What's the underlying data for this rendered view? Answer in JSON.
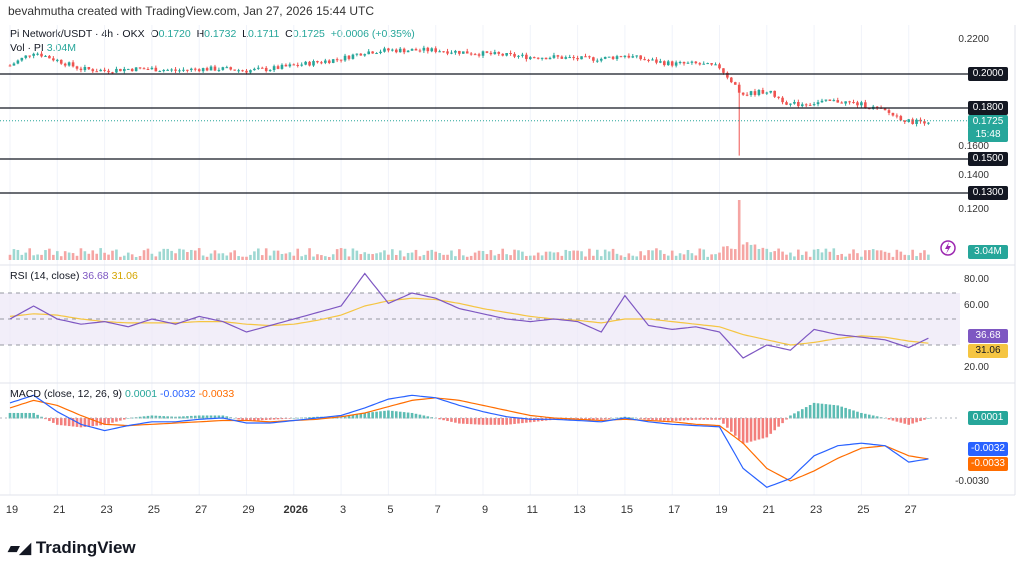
{
  "credit": "bevahmutha created with TradingView.com, Jan 27, 2026 15:44 UTC",
  "legend": {
    "symbol": "Pi Network/USDT · 4h · OKX",
    "o_label": "O",
    "o": "0.1720",
    "h_label": "H",
    "h": "0.1732",
    "l_label": "L",
    "l": "0.1711",
    "c_label": "C",
    "c": "0.1725",
    "change": "+0.0006 (+0.35%)"
  },
  "volume": {
    "label": "Vol · PI",
    "value": "3.04M"
  },
  "brand": "TradingView",
  "colors": {
    "up": "#26a69a",
    "down": "#ef5350",
    "rsi": "#7e57c2",
    "rsi_ma": "#f5c542",
    "macd": "#2962ff",
    "signal": "#ff6d00"
  },
  "chart_data": [
    {
      "type": "candlestick",
      "title": "Pi Network/USDT 4h",
      "x_ticks": [
        "19",
        "21",
        "23",
        "25",
        "27",
        "29",
        "2026",
        "3",
        "5",
        "7",
        "9",
        "11",
        "13",
        "15",
        "17",
        "19",
        "21",
        "23",
        "25",
        "27"
      ],
      "y_ticks": [
        "0.2200",
        "0.2000",
        "0.1800",
        "0.1600",
        "0.1500",
        "0.1400",
        "0.1300",
        "0.1200"
      ],
      "ylim": [
        0.115,
        0.228
      ],
      "horizontal_lines": [
        "0.2000",
        "0.1800",
        "0.1500",
        "0.1300"
      ],
      "last_price": "0.1725",
      "countdown": "15:48",
      "volume_last": "3.04M",
      "daily_close": [
        0.205,
        0.213,
        0.208,
        0.203,
        0.202,
        0.203,
        0.203,
        0.202,
        0.203,
        0.203,
        0.202,
        0.203,
        0.205,
        0.207,
        0.209,
        0.213,
        0.214,
        0.214,
        0.214,
        0.213,
        0.212,
        0.211,
        0.21,
        0.21,
        0.209,
        0.209,
        0.211,
        0.208,
        0.206,
        0.206,
        0.204,
        0.188,
        0.19,
        0.182,
        0.183,
        0.184,
        0.182,
        0.178,
        0.172,
        0.1725
      ]
    },
    {
      "type": "line",
      "title": "RSI (14, close)",
      "rsi_value": "36.68",
      "ma_value": "31.06",
      "y_ticks": [
        "80.00",
        "60.00",
        "20.00"
      ],
      "ylim": [
        10,
        90
      ],
      "bands": [
        70,
        50,
        30
      ],
      "rsi_daily": [
        50,
        60,
        50,
        46,
        48,
        44,
        50,
        46,
        52,
        48,
        40,
        45,
        50,
        55,
        60,
        85,
        62,
        70,
        66,
        58,
        54,
        50,
        48,
        50,
        48,
        40,
        68,
        45,
        42,
        44,
        40,
        20,
        30,
        26,
        42,
        38,
        36,
        34,
        28,
        36.68
      ],
      "ma_daily": [
        52,
        54,
        53,
        50,
        48,
        47,
        47,
        47,
        48,
        48,
        46,
        45,
        46,
        49,
        53,
        60,
        64,
        66,
        65,
        62,
        58,
        55,
        52,
        50,
        49,
        47,
        50,
        50,
        48,
        46,
        44,
        38,
        34,
        30,
        32,
        35,
        37,
        36,
        33,
        31.06
      ]
    },
    {
      "type": "line",
      "title": "MACD (close, 12, 26, 9)",
      "hist": "0.0001",
      "macd": "-0.0032",
      "signal": "-0.0033",
      "y_ticks": [
        "-0.0030"
      ],
      "ylim": [
        -0.0058,
        0.0025
      ],
      "macd_daily": [
        0.0012,
        0.0018,
        0.0005,
        -0.0005,
        -0.001,
        -0.0006,
        -0.0003,
        -0.0003,
        -0.0001,
        0.0,
        -0.0004,
        -0.0004,
        -0.0002,
        0.0,
        0.0002,
        0.0008,
        0.0015,
        0.0018,
        0.0016,
        0.001,
        0.0005,
        0.0001,
        -0.0001,
        -0.0001,
        -0.0002,
        -0.0003,
        0.0,
        -0.0003,
        -0.0005,
        -0.0006,
        -0.0007,
        -0.004,
        -0.0055,
        -0.0048,
        -0.003,
        -0.0022,
        -0.002,
        -0.0022,
        -0.0035,
        -0.0032
      ],
      "signal_daily": [
        0.0008,
        0.0014,
        0.001,
        0.0002,
        -0.0005,
        -0.0006,
        -0.0005,
        -0.0004,
        -0.0003,
        -0.0002,
        -0.0002,
        -0.0003,
        -0.0002,
        -0.0001,
        0.0001,
        0.0004,
        0.0009,
        0.0014,
        0.0016,
        0.0014,
        0.001,
        0.0006,
        0.0002,
        0.0,
        -0.0001,
        -0.0002,
        -0.0001,
        -0.0002,
        -0.0003,
        -0.0005,
        -0.0006,
        -0.002,
        -0.004,
        -0.005,
        -0.0042,
        -0.0032,
        -0.0024,
        -0.0022,
        -0.003,
        -0.0033
      ]
    }
  ]
}
